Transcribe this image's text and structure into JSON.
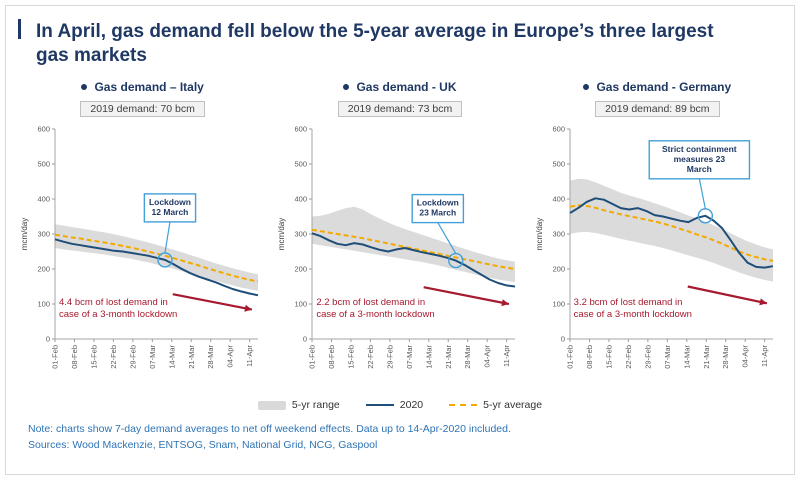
{
  "page": {
    "title": "In April, gas demand fell below the 5-year average in Europe’s three largest gas markets",
    "note": "Note: charts show 7-day demand averages to net off weekend effects. Data up to 14-Apr-2020 included.",
    "sources": "Sources: Wood Mackenzie, ENTSOG, Snam, National Grid, NCG, Gaspool"
  },
  "legend": {
    "range_label": "5-yr range",
    "line_2020_label": "2020",
    "avg_label": "5-yr average"
  },
  "colors": {
    "navy": "#1F3864",
    "line2020": "#1F4E79",
    "avg": "#F2A900",
    "range": "#DBDBDB",
    "red": "#A6192E",
    "callout": "#41A0D8",
    "note_blue": "#2E74B5"
  },
  "chart_data": [
    {
      "type": "line",
      "title": "Gas demand – Italy",
      "demand_label": "2019 demand: 70 bcm",
      "ylabel": "mcm/day",
      "ylim": [
        0,
        600
      ],
      "yticks": [
        0,
        100,
        200,
        300,
        400,
        500,
        600
      ],
      "x_tick_labels": [
        "01-Feb",
        "08-Feb",
        "15-Feb",
        "22-Feb",
        "29-Feb",
        "07-Mar",
        "14-Mar",
        "21-Mar",
        "28-Mar",
        "04-Apr",
        "11-Apr"
      ],
      "x_tick_days": [
        0,
        7,
        14,
        21,
        28,
        35,
        42,
        49,
        56,
        63,
        70
      ],
      "span_days": 73,
      "series": {
        "range_upper": [
          328,
          324,
          320,
          316,
          312,
          308,
          304,
          299,
          294,
          288,
          282,
          276,
          269,
          262,
          255,
          248,
          240,
          232,
          224,
          216,
          209,
          202,
          196,
          190,
          185
        ],
        "range_lower": [
          260,
          256,
          253,
          250,
          247,
          244,
          241,
          237,
          233,
          229,
          224,
          219,
          213,
          207,
          201,
          194,
          187,
          180,
          173,
          166,
          159,
          153,
          147,
          142,
          138
        ],
        "avg_5yr": [
          298,
          294,
          290,
          287,
          283,
          279,
          275,
          271,
          266,
          261,
          256,
          250,
          244,
          238,
          231,
          224,
          217,
          210,
          202,
          195,
          188,
          181,
          175,
          169,
          164
        ],
        "y2020": [
          285,
          278,
          272,
          268,
          264,
          260,
          256,
          252,
          250,
          246,
          242,
          238,
          232,
          226,
          214,
          200,
          188,
          178,
          170,
          162,
          152,
          143,
          136,
          130,
          125
        ]
      },
      "annotation": {
        "lines": [
          "Lockdown",
          "12 March"
        ],
        "index": 13,
        "box_offset": [
          5,
          -52
        ]
      },
      "arrow": {
        "from": [
          0.58,
          128
        ],
        "to": [
          0.97,
          84
        ]
      },
      "loss_note": [
        "4.4 bcm of lost demand in",
        "case of a 3-month lockdown"
      ]
    },
    {
      "type": "line",
      "title": "Gas demand - UK",
      "demand_label": "2019 demand: 73 bcm",
      "ylabel": "mcm/day",
      "ylim": [
        0,
        600
      ],
      "yticks": [
        0,
        100,
        200,
        300,
        400,
        500,
        600
      ],
      "x_tick_labels": [
        "01-Feb",
        "08-Feb",
        "15-Feb",
        "22-Feb",
        "29-Feb",
        "07-Mar",
        "14-Mar",
        "21-Mar",
        "28-Mar",
        "04-Apr",
        "11-Apr"
      ],
      "x_tick_days": [
        0,
        7,
        14,
        21,
        28,
        35,
        42,
        49,
        56,
        63,
        70
      ],
      "span_days": 73,
      "series": {
        "range_upper": [
          350,
          352,
          358,
          366,
          374,
          378,
          370,
          356,
          344,
          333,
          323,
          314,
          306,
          298,
          290,
          282,
          274,
          266,
          258,
          250,
          243,
          236,
          230,
          225,
          221
        ],
        "range_lower": [
          272,
          268,
          264,
          260,
          256,
          252,
          248,
          244,
          240,
          236,
          232,
          228,
          224,
          220,
          215,
          210,
          204,
          198,
          192,
          186,
          180,
          175,
          170,
          166,
          163
        ],
        "avg_5yr": [
          312,
          308,
          304,
          300,
          296,
          292,
          288,
          283,
          278,
          273,
          268,
          263,
          258,
          253,
          248,
          243,
          238,
          233,
          228,
          223,
          218,
          213,
          208,
          204,
          200
        ],
        "y2020": [
          302,
          294,
          282,
          272,
          268,
          274,
          270,
          262,
          255,
          250,
          256,
          260,
          254,
          248,
          243,
          238,
          232,
          224,
          212,
          198,
          184,
          170,
          160,
          153,
          150
        ]
      },
      "annotation": {
        "lines": [
          "Lockdown",
          "23 March"
        ],
        "index": 17,
        "box_offset": [
          -18,
          -52
        ]
      },
      "arrow": {
        "from": [
          0.55,
          148
        ],
        "to": [
          0.97,
          100
        ]
      },
      "loss_note": [
        "2.2 bcm of lost demand in",
        "case of a 3-month lockdown"
      ]
    },
    {
      "type": "line",
      "title": "Gas demand - Germany",
      "demand_label": "2019 demand: 89 bcm",
      "ylabel": "mcm/day",
      "ylim": [
        0,
        600
      ],
      "yticks": [
        0,
        100,
        200,
        300,
        400,
        500,
        600
      ],
      "x_tick_labels": [
        "01-Feb",
        "08-Feb",
        "15-Feb",
        "22-Feb",
        "29-Feb",
        "07-Mar",
        "14-Mar",
        "21-Mar",
        "28-Mar",
        "04-Apr",
        "11-Apr"
      ],
      "x_tick_days": [
        0,
        7,
        14,
        21,
        28,
        35,
        42,
        49,
        56,
        63,
        70
      ],
      "span_days": 73,
      "series": {
        "range_upper": [
          452,
          458,
          456,
          448,
          438,
          428,
          418,
          410,
          403,
          396,
          388,
          380,
          371,
          362,
          353,
          344,
          335,
          325,
          314,
          302,
          290,
          279,
          270,
          262,
          256
        ],
        "range_lower": [
          300,
          305,
          306,
          303,
          298,
          292,
          286,
          281,
          276,
          271,
          266,
          260,
          253,
          246,
          239,
          232,
          225,
          217,
          208,
          199,
          190,
          182,
          175,
          169,
          164
        ],
        "avg_5yr": [
          378,
          382,
          380,
          375,
          368,
          362,
          356,
          351,
          346,
          341,
          336,
          330,
          323,
          315,
          307,
          299,
          291,
          282,
          272,
          261,
          250,
          241,
          234,
          228,
          223
        ],
        "y2020": [
          360,
          375,
          392,
          402,
          398,
          386,
          374,
          370,
          374,
          366,
          354,
          350,
          344,
          338,
          334,
          346,
          352,
          338,
          316,
          282,
          246,
          218,
          206,
          204,
          208
        ]
      },
      "annotation": {
        "lines": [
          "Strict containment",
          "measures 23",
          "March"
        ],
        "index": 16,
        "box_offset": [
          -6,
          -56
        ]
      },
      "arrow": {
        "from": [
          0.58,
          150
        ],
        "to": [
          0.97,
          102
        ]
      },
      "loss_note": [
        "3.2 bcm of lost demand in",
        "case of a 3-month lockdown"
      ]
    }
  ]
}
